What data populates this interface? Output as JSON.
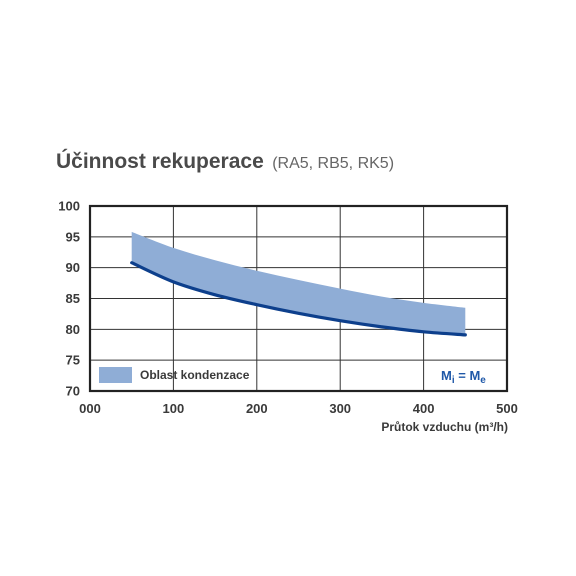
{
  "chart_data": {
    "type": "area",
    "title": "Účinnost rekuperace",
    "subtitle": "(RA5, RB5, RK5)",
    "xlabel": "Průtok vzduchu (m³/h)",
    "ylabel": "",
    "xlim": [
      0,
      500
    ],
    "ylim": [
      70,
      100
    ],
    "x_ticks": [
      "000",
      "100",
      "200",
      "300",
      "400",
      "500"
    ],
    "y_ticks": [
      "70",
      "75",
      "80",
      "85",
      "90",
      "95",
      "100"
    ],
    "grid": true,
    "legend_position": "bottom-left",
    "band": {
      "name": "Oblast kondenzace",
      "color": "#8fadd6",
      "x": [
        50,
        100,
        150,
        200,
        250,
        300,
        350,
        400,
        450
      ],
      "upper": [
        95.8,
        93.2,
        91.2,
        89.5,
        88.0,
        86.6,
        85.3,
        84.3,
        83.5
      ],
      "lower": [
        90.8,
        87.7,
        85.6,
        84.0,
        82.6,
        81.4,
        80.4,
        79.6,
        79.1
      ]
    },
    "series": [
      {
        "color": "#0d3f8c",
        "x": [
          50,
          100,
          150,
          200,
          250,
          300,
          350,
          400,
          450
        ],
        "values": [
          90.8,
          87.7,
          85.6,
          84.0,
          82.6,
          81.4,
          80.4,
          79.6,
          79.1
        ]
      }
    ],
    "annotation": {
      "text": "Mi = Me",
      "main1": "M",
      "sub1": "i",
      "eq": " = ",
      "main2": "M",
      "sub2": "e",
      "color": "#1f58a8"
    }
  }
}
